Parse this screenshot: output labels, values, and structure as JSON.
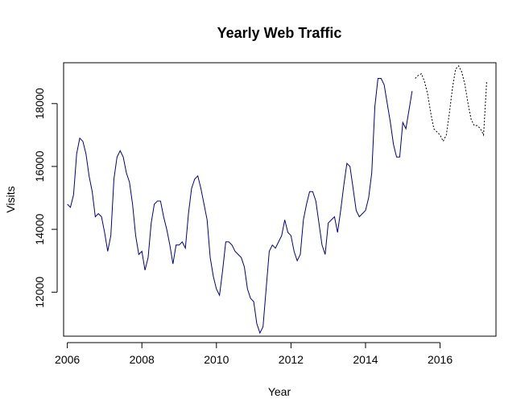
{
  "chart_data": {
    "type": "line",
    "title": "Yearly Web Traffic",
    "xlabel": "Year",
    "ylabel": "Visits",
    "xlim": [
      2005.9,
      2017.5
    ],
    "ylim": [
      10600,
      19300
    ],
    "xticks": [
      2006,
      2008,
      2010,
      2012,
      2014,
      2016
    ],
    "yticks": [
      12000,
      14000,
      16000,
      18000
    ],
    "grid": false,
    "series": [
      {
        "style": "solid",
        "color": "#00008B",
        "x": [
          2006.0,
          2006.083,
          2006.167,
          2006.25,
          2006.333,
          2006.417,
          2006.5,
          2006.583,
          2006.667,
          2006.75,
          2006.833,
          2006.917,
          2007.0,
          2007.083,
          2007.167,
          2007.25,
          2007.333,
          2007.417,
          2007.5,
          2007.583,
          2007.667,
          2007.75,
          2007.833,
          2007.917,
          2008.0,
          2008.083,
          2008.167,
          2008.25,
          2008.333,
          2008.417,
          2008.5,
          2008.583,
          2008.667,
          2008.75,
          2008.833,
          2008.917,
          2009.0,
          2009.083,
          2009.167,
          2009.25,
          2009.333,
          2009.417,
          2009.5,
          2009.583,
          2009.667,
          2009.75,
          2009.833,
          2009.917,
          2010.0,
          2010.083,
          2010.167,
          2010.25,
          2010.333,
          2010.417,
          2010.5,
          2010.583,
          2010.667,
          2010.75,
          2010.833,
          2010.917,
          2011.0,
          2011.083,
          2011.167,
          2011.25,
          2011.333,
          2011.417,
          2011.5,
          2011.583,
          2011.667,
          2011.75,
          2011.833,
          2011.917,
          2012.0,
          2012.083,
          2012.167,
          2012.25,
          2012.333,
          2012.417,
          2012.5,
          2012.583,
          2012.667,
          2012.75,
          2012.833,
          2012.917,
          2013.0,
          2013.083,
          2013.167,
          2013.25,
          2013.333,
          2013.417,
          2013.5,
          2013.583,
          2013.667,
          2013.75,
          2013.833,
          2013.917,
          2014.0,
          2014.083,
          2014.167,
          2014.25,
          2014.333,
          2014.417,
          2014.5,
          2014.583,
          2014.667,
          2014.75,
          2014.833,
          2014.917,
          2015.0,
          2015.083,
          2015.167,
          2015.25
        ],
        "y": [
          14800,
          14700,
          15100,
          16400,
          16900,
          16800,
          16400,
          15700,
          15200,
          14400,
          14500,
          14400,
          13900,
          13300,
          13800,
          15600,
          16300,
          16500,
          16300,
          15800,
          15500,
          14800,
          13800,
          13200,
          13300,
          12700,
          13100,
          14200,
          14800,
          14900,
          14900,
          14400,
          14000,
          13500,
          12900,
          13500,
          13500,
          13600,
          13400,
          14500,
          15300,
          15600,
          15700,
          15300,
          14800,
          14300,
          13100,
          12500,
          12100,
          11900,
          12700,
          13600,
          13600,
          13500,
          13300,
          13200,
          13100,
          12800,
          12100,
          11800,
          11700,
          11000,
          10700,
          10900,
          12100,
          13300,
          13500,
          13400,
          13600,
          13800,
          14300,
          13900,
          13800,
          13300,
          13000,
          13200,
          14300,
          14800,
          15200,
          15200,
          14900,
          14200,
          13500,
          13200,
          14200,
          14300,
          14400,
          13900,
          14600,
          15400,
          16100,
          16000,
          15300,
          14600,
          14400,
          14500,
          14600,
          15000,
          15800,
          17900,
          18800,
          18800,
          18600,
          18000,
          17400,
          16700,
          16300,
          16300,
          17400,
          17200,
          17800,
          18400
        ]
      },
      {
        "style": "dotted",
        "color": "#000000",
        "x": [
          2015.333,
          2015.417,
          2015.5,
          2015.583,
          2015.667,
          2015.75,
          2015.833,
          2015.917,
          2016.0,
          2016.083,
          2016.167,
          2016.25,
          2016.333,
          2016.417,
          2016.5,
          2016.583,
          2016.667,
          2016.75,
          2016.833,
          2016.917,
          2017.0,
          2017.083,
          2017.167,
          2017.25
        ],
        "y": [
          18800,
          18900,
          18950,
          18700,
          18300,
          17700,
          17200,
          17100,
          17000,
          16800,
          17000,
          17700,
          18500,
          19100,
          19200,
          19000,
          18600,
          18000,
          17500,
          17300,
          17300,
          17200,
          17000,
          18700
        ]
      }
    ]
  }
}
